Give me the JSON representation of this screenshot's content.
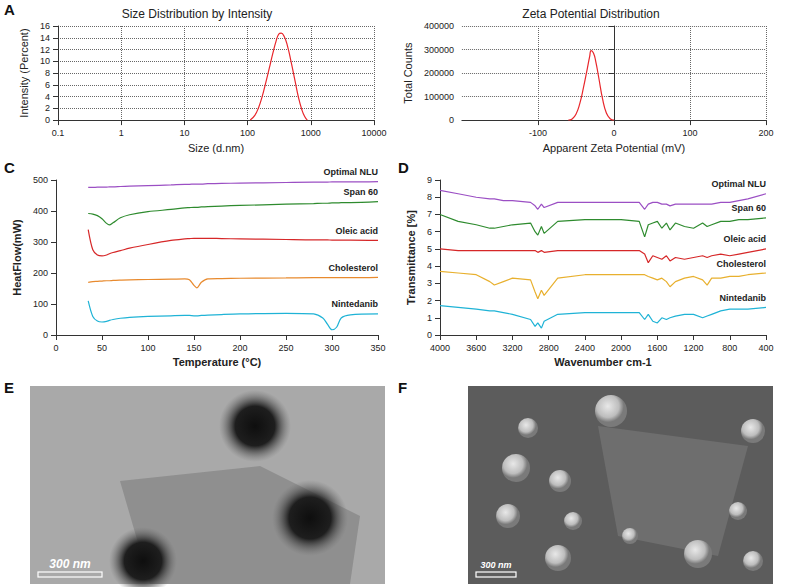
{
  "chart_data": [
    {
      "panel": "A",
      "type": "line",
      "title": "Size Distribution by Intensity",
      "x_label": "Size (d.nm)",
      "y_label": "Intensity (Percent)",
      "log": "x",
      "grid": true,
      "color": "#e8262b",
      "x": [
        110,
        130,
        150,
        170,
        190,
        220,
        250,
        280,
        310,
        340,
        380,
        430,
        490,
        560,
        640,
        720,
        800,
        880
      ],
      "values": [
        0,
        0.8,
        2.2,
        4,
        6,
        8.8,
        11.3,
        13.3,
        14.6,
        14.8,
        14.2,
        12.5,
        9.8,
        6.8,
        3.8,
        1.8,
        0.6,
        0
      ],
      "xlim": [
        0.1,
        10000
      ],
      "xticks": [
        0.1,
        1,
        10,
        100,
        1000,
        10000
      ],
      "ylim": [
        0,
        16
      ],
      "yticks": [
        0,
        2,
        4,
        6,
        8,
        10,
        12,
        14,
        16
      ]
    },
    {
      "type": "line",
      "title": "Zeta Potential Distribution",
      "x_label": "Apparent Zeta Potential (mV)",
      "y_label": "Total Counts",
      "grid": true,
      "color": "#e8262b",
      "x": [
        -60,
        -55,
        -50,
        -45,
        -40,
        -35,
        -32,
        -30,
        -27,
        -24,
        -20,
        -15,
        -10,
        -5,
        0
      ],
      "values": [
        0,
        5000,
        25000,
        70000,
        140000,
        220000,
        270000,
        295000,
        285000,
        250000,
        180000,
        90000,
        30000,
        6000,
        0
      ],
      "xlim": [
        -200,
        200
      ],
      "xticks": [
        -100,
        0,
        100,
        200
      ],
      "ylim": [
        0,
        400000
      ],
      "yticks": [
        0,
        100000,
        200000,
        300000,
        400000
      ]
    },
    {
      "panel": "C",
      "type": "line",
      "x_label": "Temperature (°C)",
      "y_label": "HeatFlow(mW)",
      "grid": false,
      "x": [
        35,
        40,
        45,
        50,
        55,
        58,
        62,
        70,
        80,
        100,
        125,
        140,
        145,
        150,
        153,
        158,
        165,
        180,
        200,
        250,
        280,
        290,
        295,
        300,
        305,
        310,
        320,
        350
      ],
      "series": [
        {
          "name": "Optimal NLU",
          "color": "#9b4fc4",
          "values": [
            476,
            476,
            477,
            477,
            477,
            478,
            478,
            479,
            480,
            482,
            484,
            486,
            486,
            487,
            487,
            487,
            488,
            489,
            490,
            492,
            493,
            493,
            493,
            494,
            494,
            494,
            494,
            495
          ]
        },
        {
          "name": "Span 60",
          "color": "#2e8b2e",
          "values": [
            392,
            390,
            385,
            375,
            360,
            355,
            362,
            378,
            388,
            398,
            405,
            410,
            411,
            412,
            412,
            413,
            414,
            416,
            418,
            422,
            424,
            425,
            425,
            426,
            426,
            427,
            427,
            430
          ]
        },
        {
          "name": "Oleic acid",
          "color": "#d62728",
          "values": [
            340,
            275,
            258,
            255,
            258,
            262,
            266,
            272,
            280,
            292,
            305,
            310,
            311,
            312,
            312,
            312,
            312,
            311,
            310,
            308,
            307,
            307,
            307,
            306,
            306,
            306,
            306,
            305
          ]
        },
        {
          "name": "Cholesterol",
          "color": "#e88a2e",
          "values": [
            170,
            172,
            173,
            174,
            175,
            175,
            176,
            177,
            178,
            179,
            180,
            181,
            178,
            160,
            152,
            170,
            181,
            182,
            183,
            184,
            185,
            185,
            185,
            185,
            185,
            185,
            185,
            186
          ]
        },
        {
          "name": "Nintedanib",
          "color": "#1fb3d6",
          "values": [
            110,
            60,
            45,
            42,
            44,
            47,
            50,
            54,
            57,
            60,
            62,
            63,
            63,
            62,
            62,
            63,
            64,
            66,
            68,
            70,
            68,
            55,
            35,
            17,
            25,
            55,
            65,
            68
          ]
        }
      ],
      "xlim": [
        0,
        350
      ],
      "xticks": [
        0,
        50,
        100,
        150,
        200,
        250,
        300,
        350
      ],
      "ylim": [
        0,
        500
      ],
      "yticks": [
        0,
        100,
        200,
        300,
        400,
        500
      ]
    },
    {
      "panel": "D",
      "type": "line",
      "x_label": "Wavenumber cm-1",
      "y_label": "Transmittance [%]",
      "grid": false,
      "x": [
        4000,
        3800,
        3600,
        3450,
        3400,
        3300,
        3200,
        3000,
        2950,
        2920,
        2880,
        2850,
        2700,
        2400,
        2000,
        1800,
        1740,
        1700,
        1650,
        1600,
        1550,
        1500,
        1460,
        1400,
        1300,
        1200,
        1100,
        1050,
        1000,
        900,
        800,
        700,
        600,
        400
      ],
      "series": [
        {
          "name": "Optimal NLU",
          "color": "#9b4fc4",
          "values": [
            8.4,
            8.2,
            8.0,
            7.9,
            7.9,
            7.8,
            7.8,
            7.7,
            7.5,
            7.3,
            7.6,
            7.4,
            7.7,
            7.7,
            7.7,
            7.7,
            7.3,
            7.6,
            7.7,
            7.7,
            7.6,
            7.6,
            7.5,
            7.6,
            7.6,
            7.6,
            7.6,
            7.6,
            7.6,
            7.7,
            7.7,
            7.8,
            7.9,
            8.2
          ]
        },
        {
          "name": "Span 60",
          "color": "#2e8b2e",
          "values": [
            7.0,
            6.6,
            6.4,
            6.2,
            6.2,
            6.3,
            6.4,
            6.5,
            6.0,
            5.8,
            6.3,
            5.9,
            6.6,
            6.7,
            6.7,
            6.6,
            5.7,
            6.4,
            6.5,
            6.6,
            6.2,
            6.5,
            6.1,
            6.5,
            6.3,
            6.2,
            6.5,
            6.3,
            6.4,
            6.6,
            6.6,
            6.7,
            6.7,
            6.8
          ]
        },
        {
          "name": "Oleic acid",
          "color": "#d62728",
          "values": [
            5.0,
            4.9,
            4.9,
            4.9,
            4.9,
            4.9,
            4.9,
            4.9,
            4.9,
            4.8,
            4.9,
            4.8,
            4.9,
            4.9,
            4.9,
            4.9,
            4.7,
            4.2,
            4.6,
            4.5,
            4.4,
            4.6,
            4.3,
            4.5,
            4.4,
            4.5,
            4.6,
            4.5,
            4.6,
            4.7,
            4.6,
            4.7,
            4.8,
            5.0
          ]
        },
        {
          "name": "Cholesterol",
          "color": "#e8b02e",
          "values": [
            3.7,
            3.6,
            3.5,
            3.1,
            2.9,
            3.1,
            3.3,
            3.2,
            2.5,
            2.1,
            2.6,
            2.3,
            3.3,
            3.5,
            3.5,
            3.5,
            3.5,
            3.4,
            3.3,
            3.2,
            3.3,
            3.1,
            2.8,
            3.1,
            3.3,
            3.4,
            3.2,
            2.9,
            3.3,
            3.3,
            3.4,
            3.4,
            3.5,
            3.6
          ]
        },
        {
          "name": "Nintedanib",
          "color": "#1fb3d6",
          "values": [
            1.7,
            1.6,
            1.5,
            1.4,
            1.4,
            1.3,
            1.2,
            0.9,
            0.5,
            0.7,
            0.4,
            0.8,
            1.2,
            1.3,
            1.3,
            1.3,
            0.9,
            1.2,
            0.8,
            0.7,
            1.0,
            0.9,
            1.0,
            1.1,
            1.2,
            1.2,
            1.0,
            1.1,
            1.2,
            1.4,
            1.5,
            1.5,
            1.5,
            1.6
          ]
        }
      ],
      "xlim": [
        4000,
        400
      ],
      "xticks": [
        4000,
        3600,
        3200,
        2800,
        2400,
        2000,
        1600,
        1200,
        800,
        400
      ],
      "ylim": [
        0,
        9
      ],
      "yticks": [
        0,
        1,
        2,
        3,
        4,
        5,
        6,
        7,
        8,
        9
      ]
    },
    {
      "panel": "E",
      "type": "image",
      "scale_bar": "300 nm"
    },
    {
      "panel": "F",
      "type": "image",
      "scale_bar": "300 nm"
    }
  ]
}
